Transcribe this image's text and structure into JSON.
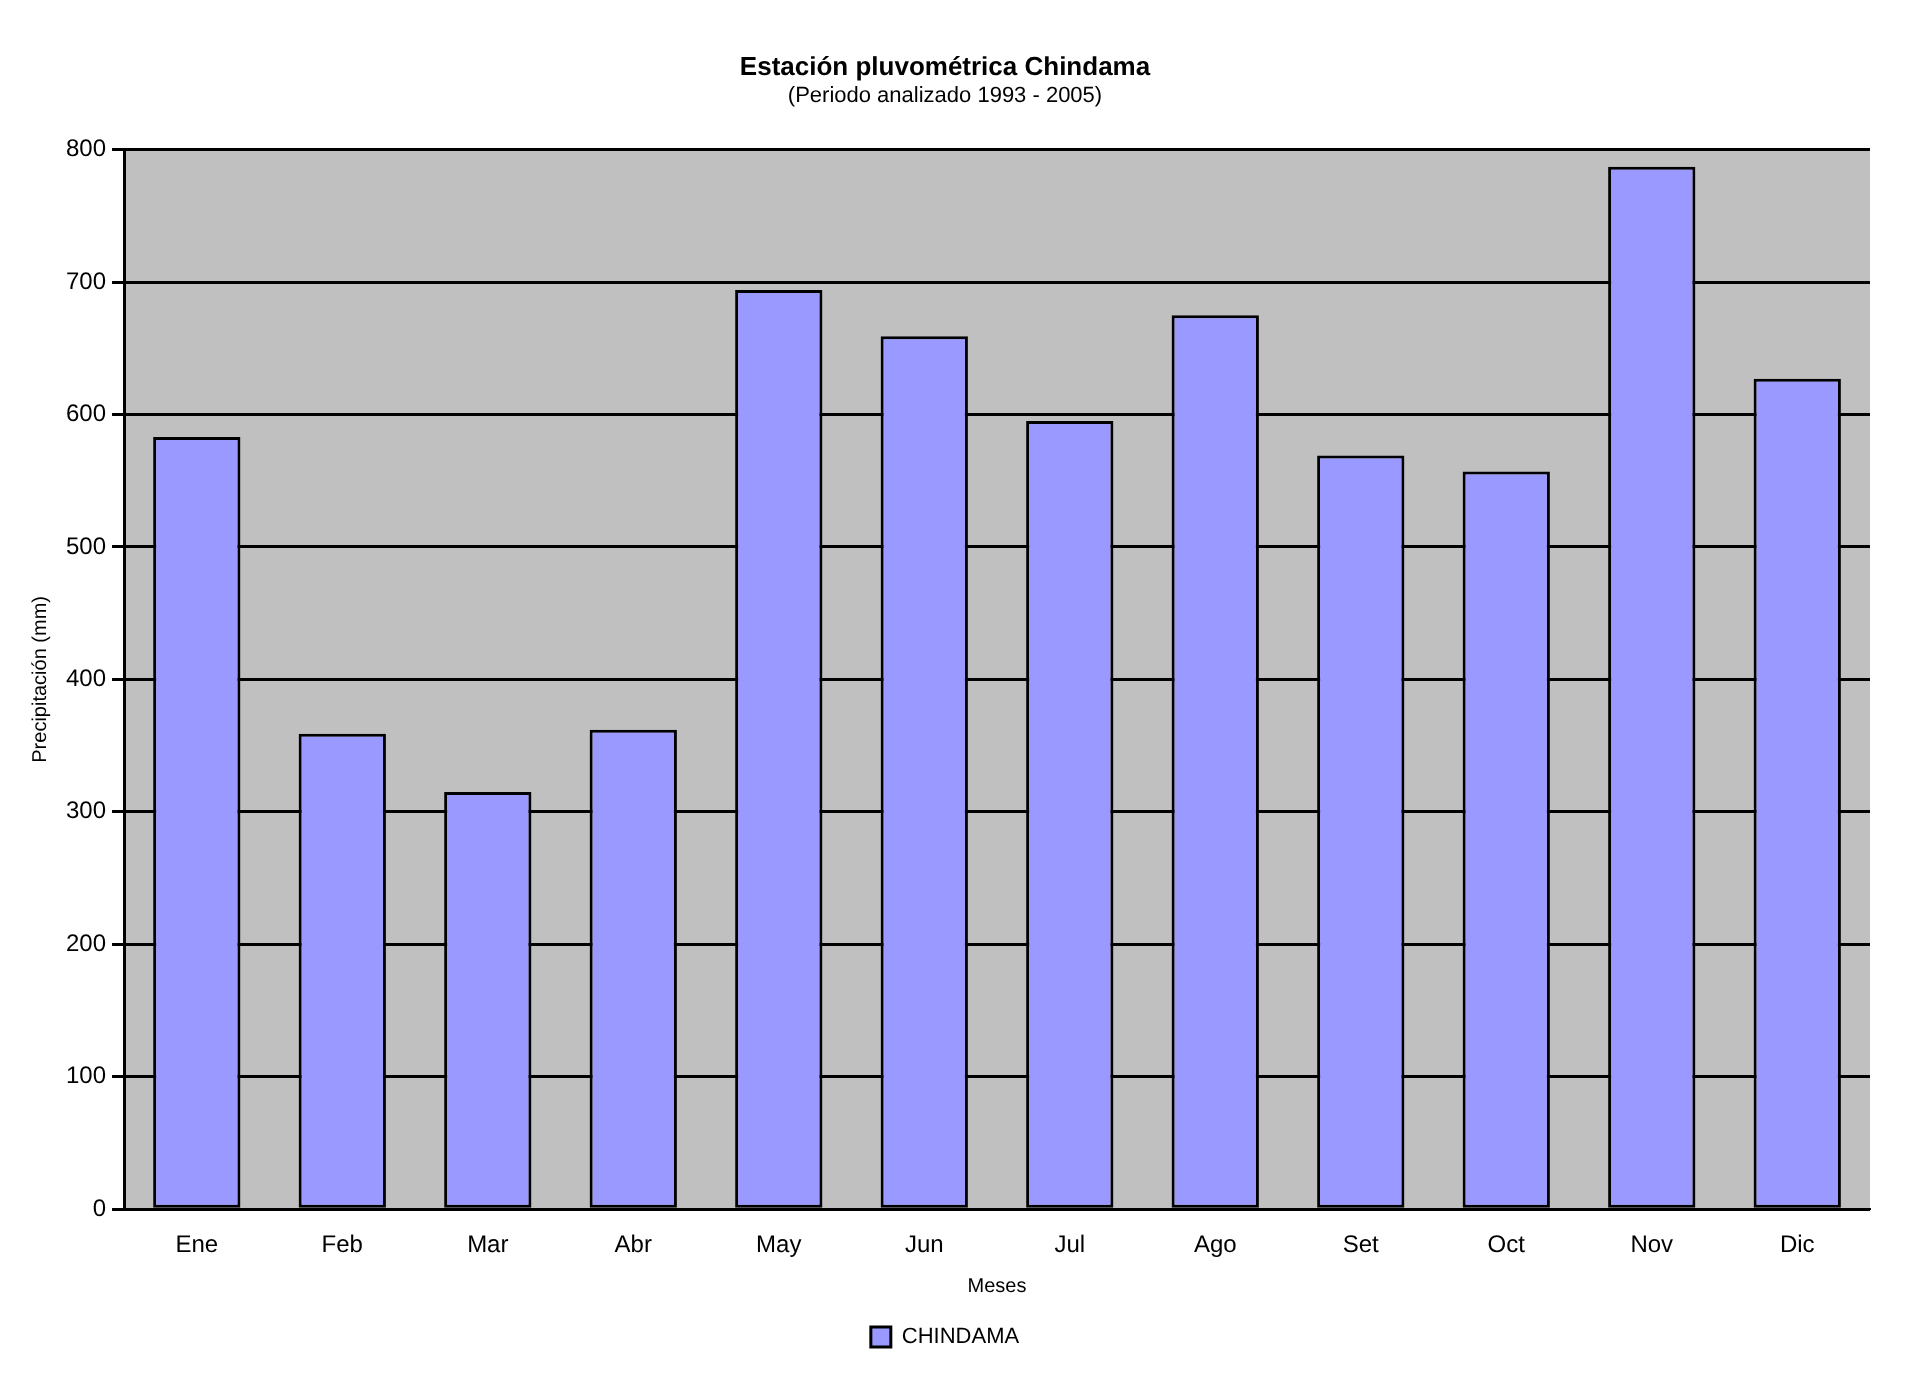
{
  "chart_data": {
    "type": "bar",
    "title": "Estación pluvométrica Chindama",
    "subtitle": "(Periodo analizado 1993 - 2005)",
    "xlabel": "Meses",
    "ylabel": "Precipitación (mm)",
    "categories": [
      "Ene",
      "Feb",
      "Mar",
      "Abr",
      "May",
      "Jun",
      "Jul",
      "Ago",
      "Set",
      "Oct",
      "Nov",
      "Dic"
    ],
    "series": [
      {
        "name": "CHINDAMA",
        "color": "#9999ff",
        "values": [
          583,
          359,
          315,
          362,
          694,
          659,
          595,
          675,
          569,
          557,
          787,
          627
        ]
      }
    ],
    "ylim": [
      0,
      800
    ],
    "yticks": [
      0,
      100,
      200,
      300,
      400,
      500,
      600,
      700,
      800
    ],
    "grid": "y",
    "legend": "bottom"
  }
}
